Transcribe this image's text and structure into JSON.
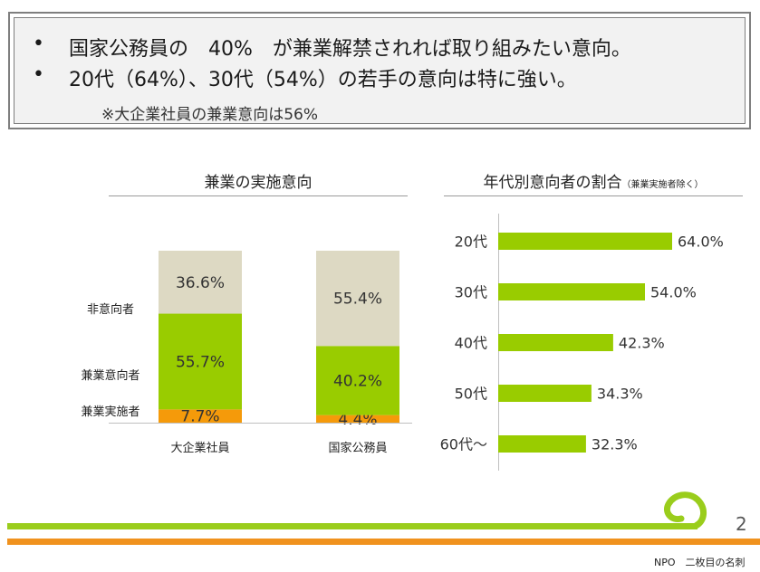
{
  "callout": {
    "bullet1": "国家公務員の　40%　が兼業解禁されれば取り組みたい意向。",
    "bullet2": "20代（64%）、30代（54%）の若手の意向は特に強い。",
    "note": "※大企業社員の兼業意向は56%"
  },
  "left_chart_title": "兼業の実施意向",
  "right_chart_title": "年代別意向者の割合",
  "right_chart_subtitle": "（兼業実施者除く）",
  "page_number": "2",
  "footer_text": "NPO　二枚目の名刺",
  "colors": {
    "green": "#99cc00",
    "orange": "#f59a0a",
    "beige": "#ddd9c3",
    "accent_line_green": "#9acd1c",
    "accent_line_orange": "#f0921e"
  },
  "chart_data": [
    {
      "type": "bar",
      "stacked": true,
      "orientation": "vertical",
      "title": "兼業の実施意向",
      "categories": [
        "大企業社員",
        "国家公務員"
      ],
      "series": [
        {
          "name": "兼業実施者",
          "values": [
            7.7,
            4.4
          ],
          "labels": [
            "7.7%",
            "4.4%"
          ],
          "color": "#f59a0a"
        },
        {
          "name": "兼業意向者",
          "values": [
            55.7,
            40.2
          ],
          "labels": [
            "55.7%",
            "40.2%"
          ],
          "color": "#99cc00"
        },
        {
          "name": "非意向者",
          "values": [
            36.6,
            55.4
          ],
          "labels": [
            "36.6%",
            "55.4%"
          ],
          "color": "#ddd9c3"
        }
      ],
      "ylim": [
        0,
        100
      ]
    },
    {
      "type": "bar",
      "orientation": "horizontal",
      "title": "年代別意向者の割合",
      "categories": [
        "20代",
        "30代",
        "40代",
        "50代",
        "60代～"
      ],
      "values": [
        64.0,
        54.0,
        42.3,
        34.3,
        32.3
      ],
      "labels": [
        "64.0%",
        "54.0%",
        "42.3%",
        "34.3%",
        "32.3%"
      ],
      "color": "#99cc00"
    }
  ]
}
